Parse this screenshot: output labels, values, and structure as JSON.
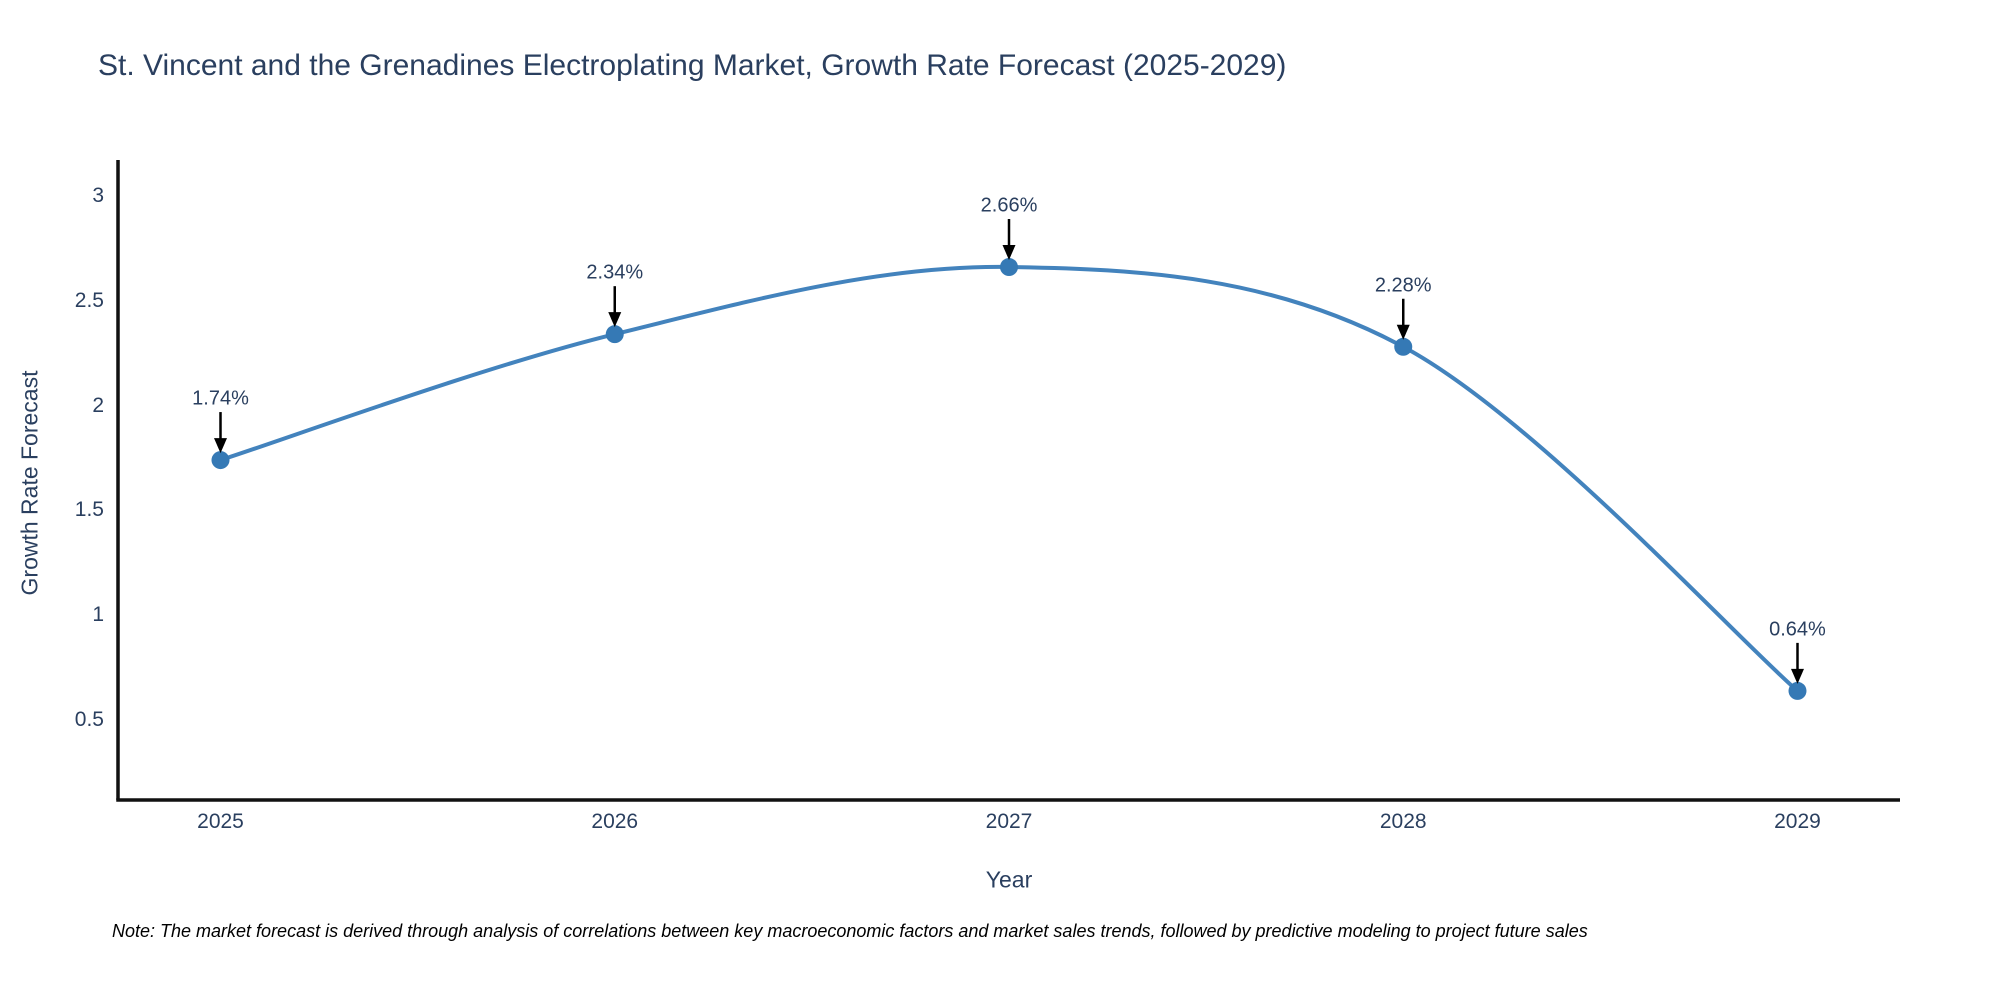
{
  "title": "St. Vincent and the Grenadines Electroplating Market, Growth Rate Forecast (2025-2029)",
  "note": "Note: The market forecast is derived through analysis of correlations between key macroeconomic factors and market sales trends, followed by predictive modeling to project future sales",
  "chart_data": {
    "type": "line",
    "line_shape": "spline",
    "title": "St. Vincent and the Grenadines Electroplating Market, Growth Rate Forecast (2025-2029)",
    "xlabel": "Year",
    "ylabel": "Growth Rate Forecast",
    "x": [
      2025,
      2026,
      2027,
      2028,
      2029
    ],
    "values": [
      1.74,
      2.34,
      2.66,
      2.28,
      0.64
    ],
    "point_labels": [
      "1.74%",
      "2.34%",
      "2.66%",
      "2.28%",
      "0.64%"
    ],
    "xtick_labels": [
      "2025",
      "2026",
      "2027",
      "2028",
      "2029"
    ],
    "yticks": [
      0.5,
      1,
      1.5,
      2,
      2.5,
      3
    ],
    "ytick_labels": [
      "0.5",
      "1",
      "1.5",
      "2",
      "2.5",
      "3"
    ],
    "xlim": [
      2024.74,
      2029.26
    ],
    "ylim": [
      0.12,
      3.17
    ],
    "grid": false,
    "legend": "none",
    "markers": true,
    "colors": {
      "line": "#4383bd",
      "marker": "#3579b5",
      "axis": "#111111",
      "text": "#2a3f5f",
      "arrow": "#000000",
      "note_text": "#000000",
      "background": "#ffffff"
    }
  }
}
